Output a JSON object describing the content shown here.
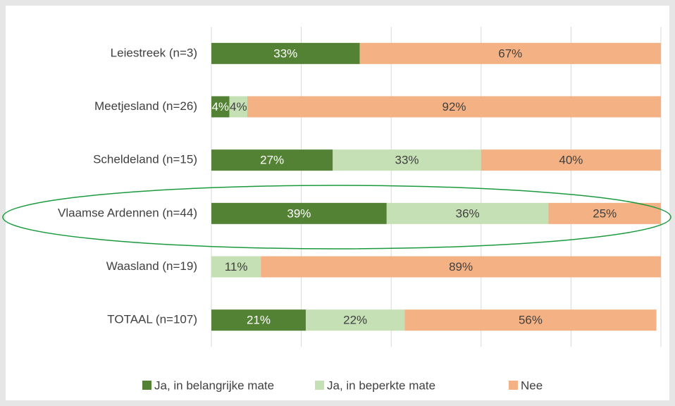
{
  "chart_data": {
    "type": "bar",
    "orientation": "horizontal",
    "stacked": true,
    "categories": [
      "Leiestreek (n=3)",
      "Meetjesland (n=26)",
      "Scheldeland (n=15)",
      "Vlaamse Ardennen (n=44)",
      "Waasland (n=19)",
      "TOTAAL (n=107)"
    ],
    "series": [
      {
        "name": "Ja, in belangrijke mate",
        "color": "#548235",
        "label_color": "#ffffff",
        "values": [
          33,
          4,
          27,
          39,
          0,
          21
        ],
        "value_labels": [
          "33%",
          "4%",
          "27%",
          "39%",
          null,
          "21%"
        ]
      },
      {
        "name": "Ja, in beperkte mate",
        "color": "#c5e0b4",
        "label_color": "#404040",
        "values": [
          0,
          4,
          33,
          36,
          11,
          22
        ],
        "value_labels": [
          null,
          "4%",
          "33%",
          "36%",
          "11%",
          "22%"
        ]
      },
      {
        "name": "Nee",
        "color": "#f4b183",
        "label_color": "#404040",
        "values": [
          67,
          92,
          40,
          25,
          89,
          56
        ],
        "value_labels": [
          "67%",
          "92%",
          "40%",
          "25%",
          "89%",
          "56%"
        ]
      }
    ],
    "xlim": [
      0,
      100
    ],
    "xticks": [
      0,
      20,
      40,
      60,
      80,
      100
    ],
    "grid": true,
    "legend": "bottom"
  }
}
